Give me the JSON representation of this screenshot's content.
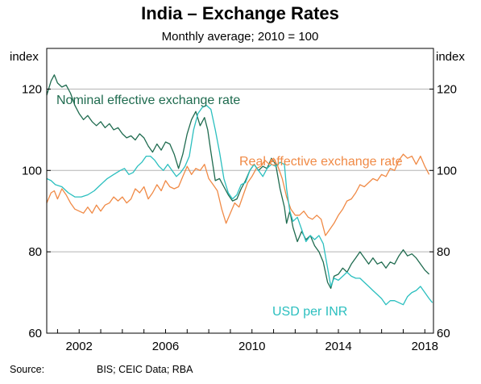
{
  "chart_data": {
    "type": "line",
    "title": "India – Exchange Rates",
    "subtitle": "Monthly average; 2010 = 100",
    "ylabel_left": "index",
    "ylabel_right": "index",
    "xlim": [
      2000.5,
      2018.4
    ],
    "ylim": [
      60,
      130
    ],
    "x_ticks": [
      2002,
      2006,
      2010,
      2014,
      2018
    ],
    "x_tick_labels": [
      "2002",
      "2006",
      "2010",
      "2014",
      "2018"
    ],
    "y_ticks": [
      60,
      80,
      100,
      120
    ],
    "y_tick_labels": [
      "60",
      "80",
      "100",
      "120"
    ],
    "grid": "horizontal",
    "legend": "inline labels",
    "source_label": "Source:",
    "source_text": "BIS; CEIC Data; RBA",
    "series": [
      {
        "name": "Nominal effective exchange rate",
        "color": "#1f6b4f",
        "points": [
          [
            2000.5,
            118.5
          ],
          [
            2000.7,
            122.0
          ],
          [
            2000.85,
            123.5
          ],
          [
            2001.0,
            121.5
          ],
          [
            2001.2,
            120.5
          ],
          [
            2001.4,
            121.0
          ],
          [
            2001.6,
            119.0
          ],
          [
            2001.8,
            116.0
          ],
          [
            2002.0,
            114.0
          ],
          [
            2002.2,
            112.5
          ],
          [
            2002.4,
            113.5
          ],
          [
            2002.6,
            112.0
          ],
          [
            2002.8,
            111.0
          ],
          [
            2003.0,
            112.0
          ],
          [
            2003.2,
            110.5
          ],
          [
            2003.4,
            111.5
          ],
          [
            2003.6,
            110.0
          ],
          [
            2003.8,
            110.5
          ],
          [
            2004.0,
            109.0
          ],
          [
            2004.2,
            108.0
          ],
          [
            2004.4,
            108.5
          ],
          [
            2004.6,
            107.5
          ],
          [
            2004.8,
            109.0
          ],
          [
            2005.0,
            108.0
          ],
          [
            2005.2,
            106.0
          ],
          [
            2005.4,
            104.5
          ],
          [
            2005.6,
            106.5
          ],
          [
            2005.8,
            105.0
          ],
          [
            2006.0,
            107.0
          ],
          [
            2006.2,
            106.5
          ],
          [
            2006.4,
            104.0
          ],
          [
            2006.6,
            100.5
          ],
          [
            2006.8,
            104.0
          ],
          [
            2007.0,
            109.0
          ],
          [
            2007.2,
            112.5
          ],
          [
            2007.4,
            114.5
          ],
          [
            2007.6,
            111.0
          ],
          [
            2007.8,
            113.0
          ],
          [
            2007.95,
            110.0
          ],
          [
            2008.1,
            104.5
          ],
          [
            2008.3,
            97.5
          ],
          [
            2008.5,
            98.0
          ],
          [
            2008.7,
            96.0
          ],
          [
            2008.9,
            94.0
          ],
          [
            2009.1,
            92.5
          ],
          [
            2009.3,
            93.0
          ],
          [
            2009.5,
            95.5
          ],
          [
            2009.7,
            97.5
          ],
          [
            2009.9,
            100.0
          ],
          [
            2010.1,
            101.5
          ],
          [
            2010.3,
            100.0
          ],
          [
            2010.5,
            101.0
          ],
          [
            2010.7,
            100.5
          ],
          [
            2010.9,
            103.0
          ],
          [
            2011.1,
            101.5
          ],
          [
            2011.3,
            95.5
          ],
          [
            2011.5,
            91.0
          ],
          [
            2011.6,
            87.0
          ],
          [
            2011.75,
            90.0
          ],
          [
            2011.9,
            86.0
          ],
          [
            2012.1,
            82.5
          ],
          [
            2012.3,
            85.0
          ],
          [
            2012.5,
            83.0
          ],
          [
            2012.7,
            84.0
          ],
          [
            2012.9,
            81.5
          ],
          [
            2013.1,
            80.0
          ],
          [
            2013.3,
            77.5
          ],
          [
            2013.5,
            72.5
          ],
          [
            2013.65,
            71.0
          ],
          [
            2013.8,
            74.0
          ],
          [
            2014.0,
            74.5
          ],
          [
            2014.2,
            76.0
          ],
          [
            2014.4,
            75.0
          ],
          [
            2014.6,
            77.0
          ],
          [
            2014.8,
            78.5
          ],
          [
            2015.0,
            80.0
          ],
          [
            2015.2,
            78.5
          ],
          [
            2015.4,
            77.0
          ],
          [
            2015.6,
            78.5
          ],
          [
            2015.8,
            77.0
          ],
          [
            2016.0,
            77.5
          ],
          [
            2016.2,
            76.0
          ],
          [
            2016.4,
            77.5
          ],
          [
            2016.6,
            77.0
          ],
          [
            2016.8,
            79.0
          ],
          [
            2017.0,
            80.5
          ],
          [
            2017.2,
            79.0
          ],
          [
            2017.4,
            79.5
          ],
          [
            2017.6,
            78.5
          ],
          [
            2017.8,
            77.0
          ],
          [
            2018.0,
            75.5
          ],
          [
            2018.2,
            74.5
          ]
        ]
      },
      {
        "name": "Real effective exchange rate",
        "color": "#f08a46",
        "points": [
          [
            2000.5,
            92.0
          ],
          [
            2000.7,
            94.5
          ],
          [
            2000.85,
            95.0
          ],
          [
            2001.0,
            93.0
          ],
          [
            2001.2,
            95.5
          ],
          [
            2001.4,
            94.0
          ],
          [
            2001.6,
            92.0
          ],
          [
            2001.8,
            90.5
          ],
          [
            2002.0,
            90.0
          ],
          [
            2002.2,
            89.5
          ],
          [
            2002.4,
            91.0
          ],
          [
            2002.6,
            89.5
          ],
          [
            2002.8,
            91.5
          ],
          [
            2003.0,
            90.0
          ],
          [
            2003.2,
            91.5
          ],
          [
            2003.4,
            92.0
          ],
          [
            2003.6,
            93.5
          ],
          [
            2003.8,
            92.5
          ],
          [
            2004.0,
            93.5
          ],
          [
            2004.2,
            92.0
          ],
          [
            2004.4,
            93.0
          ],
          [
            2004.6,
            95.5
          ],
          [
            2004.8,
            94.5
          ],
          [
            2005.0,
            96.0
          ],
          [
            2005.2,
            93.0
          ],
          [
            2005.4,
            94.5
          ],
          [
            2005.6,
            96.5
          ],
          [
            2005.8,
            95.0
          ],
          [
            2006.0,
            97.5
          ],
          [
            2006.2,
            96.0
          ],
          [
            2006.4,
            95.5
          ],
          [
            2006.6,
            96.0
          ],
          [
            2006.8,
            98.5
          ],
          [
            2007.0,
            101.0
          ],
          [
            2007.2,
            99.0
          ],
          [
            2007.4,
            100.5
          ],
          [
            2007.6,
            100.0
          ],
          [
            2007.8,
            101.5
          ],
          [
            2008.0,
            98.0
          ],
          [
            2008.2,
            96.5
          ],
          [
            2008.4,
            95.0
          ],
          [
            2008.6,
            90.5
          ],
          [
            2008.8,
            87.0
          ],
          [
            2009.0,
            89.5
          ],
          [
            2009.2,
            92.0
          ],
          [
            2009.4,
            91.0
          ],
          [
            2009.6,
            94.0
          ],
          [
            2009.8,
            97.0
          ],
          [
            2010.0,
            98.5
          ],
          [
            2010.2,
            100.5
          ],
          [
            2010.4,
            101.0
          ],
          [
            2010.6,
            102.5
          ],
          [
            2010.8,
            101.5
          ],
          [
            2011.0,
            103.0
          ],
          [
            2011.2,
            101.0
          ],
          [
            2011.4,
            98.0
          ],
          [
            2011.6,
            93.5
          ],
          [
            2011.8,
            90.5
          ],
          [
            2012.0,
            89.0
          ],
          [
            2012.2,
            89.0
          ],
          [
            2012.4,
            90.0
          ],
          [
            2012.6,
            88.5
          ],
          [
            2012.8,
            88.0
          ],
          [
            2013.0,
            89.0
          ],
          [
            2013.2,
            88.0
          ],
          [
            2013.4,
            84.0
          ],
          [
            2013.6,
            85.5
          ],
          [
            2013.8,
            87.0
          ],
          [
            2014.0,
            89.0
          ],
          [
            2014.2,
            90.5
          ],
          [
            2014.4,
            92.5
          ],
          [
            2014.6,
            93.0
          ],
          [
            2014.8,
            94.5
          ],
          [
            2015.0,
            96.5
          ],
          [
            2015.2,
            96.0
          ],
          [
            2015.4,
            97.0
          ],
          [
            2015.6,
            98.0
          ],
          [
            2015.8,
            97.5
          ],
          [
            2016.0,
            99.0
          ],
          [
            2016.2,
            98.5
          ],
          [
            2016.4,
            100.5
          ],
          [
            2016.6,
            100.0
          ],
          [
            2016.8,
            102.5
          ],
          [
            2017.0,
            104.0
          ],
          [
            2017.2,
            103.0
          ],
          [
            2017.4,
            103.5
          ],
          [
            2017.6,
            101.5
          ],
          [
            2017.8,
            103.5
          ],
          [
            2018.0,
            101.0
          ],
          [
            2018.2,
            99.0
          ]
        ]
      },
      {
        "name": "USD per INR",
        "color": "#2bbfbf",
        "points": [
          [
            2000.5,
            98.0
          ],
          [
            2000.7,
            97.5
          ],
          [
            2000.9,
            96.5
          ],
          [
            2001.2,
            96.0
          ],
          [
            2001.5,
            94.5
          ],
          [
            2001.8,
            93.5
          ],
          [
            2002.1,
            93.5
          ],
          [
            2002.4,
            94.0
          ],
          [
            2002.7,
            95.0
          ],
          [
            2003.0,
            96.5
          ],
          [
            2003.3,
            98.0
          ],
          [
            2003.6,
            99.0
          ],
          [
            2003.9,
            100.0
          ],
          [
            2004.1,
            100.5
          ],
          [
            2004.3,
            99.0
          ],
          [
            2004.5,
            99.5
          ],
          [
            2004.7,
            101.0
          ],
          [
            2004.9,
            102.0
          ],
          [
            2005.1,
            103.5
          ],
          [
            2005.3,
            103.5
          ],
          [
            2005.5,
            102.5
          ],
          [
            2005.7,
            101.0
          ],
          [
            2005.9,
            100.0
          ],
          [
            2006.1,
            101.5
          ],
          [
            2006.3,
            100.0
          ],
          [
            2006.5,
            98.5
          ],
          [
            2006.7,
            99.5
          ],
          [
            2006.9,
            101.0
          ],
          [
            2007.1,
            103.5
          ],
          [
            2007.3,
            110.0
          ],
          [
            2007.5,
            114.0
          ],
          [
            2007.7,
            115.5
          ],
          [
            2007.9,
            116.0
          ],
          [
            2008.1,
            115.0
          ],
          [
            2008.3,
            110.0
          ],
          [
            2008.5,
            104.5
          ],
          [
            2008.7,
            98.0
          ],
          [
            2008.9,
            94.5
          ],
          [
            2009.1,
            93.0
          ],
          [
            2009.3,
            94.0
          ],
          [
            2009.5,
            96.5
          ],
          [
            2009.7,
            97.0
          ],
          [
            2009.9,
            100.0
          ],
          [
            2010.1,
            101.5
          ],
          [
            2010.3,
            100.0
          ],
          [
            2010.5,
            98.5
          ],
          [
            2010.7,
            100.5
          ],
          [
            2010.9,
            101.5
          ],
          [
            2011.1,
            101.0
          ],
          [
            2011.3,
            102.0
          ],
          [
            2011.5,
            101.5
          ],
          [
            2011.6,
            95.5
          ],
          [
            2011.75,
            90.0
          ],
          [
            2011.9,
            87.5
          ],
          [
            2012.1,
            88.5
          ],
          [
            2012.3,
            85.5
          ],
          [
            2012.5,
            82.5
          ],
          [
            2012.7,
            84.0
          ],
          [
            2012.9,
            83.0
          ],
          [
            2013.1,
            84.0
          ],
          [
            2013.3,
            82.0
          ],
          [
            2013.5,
            76.0
          ],
          [
            2013.65,
            71.5
          ],
          [
            2013.8,
            73.5
          ],
          [
            2014.0,
            73.0
          ],
          [
            2014.2,
            74.0
          ],
          [
            2014.4,
            75.0
          ],
          [
            2014.6,
            74.0
          ],
          [
            2014.8,
            73.5
          ],
          [
            2015.0,
            73.5
          ],
          [
            2015.2,
            72.5
          ],
          [
            2015.4,
            71.5
          ],
          [
            2015.6,
            70.5
          ],
          [
            2015.8,
            69.5
          ],
          [
            2016.0,
            68.5
          ],
          [
            2016.2,
            67.0
          ],
          [
            2016.4,
            68.0
          ],
          [
            2016.6,
            68.0
          ],
          [
            2016.8,
            67.5
          ],
          [
            2017.0,
            67.0
          ],
          [
            2017.2,
            69.0
          ],
          [
            2017.4,
            70.0
          ],
          [
            2017.6,
            70.5
          ],
          [
            2017.8,
            71.5
          ],
          [
            2018.0,
            70.0
          ],
          [
            2018.2,
            68.5
          ],
          [
            2018.35,
            67.5
          ]
        ]
      }
    ]
  }
}
